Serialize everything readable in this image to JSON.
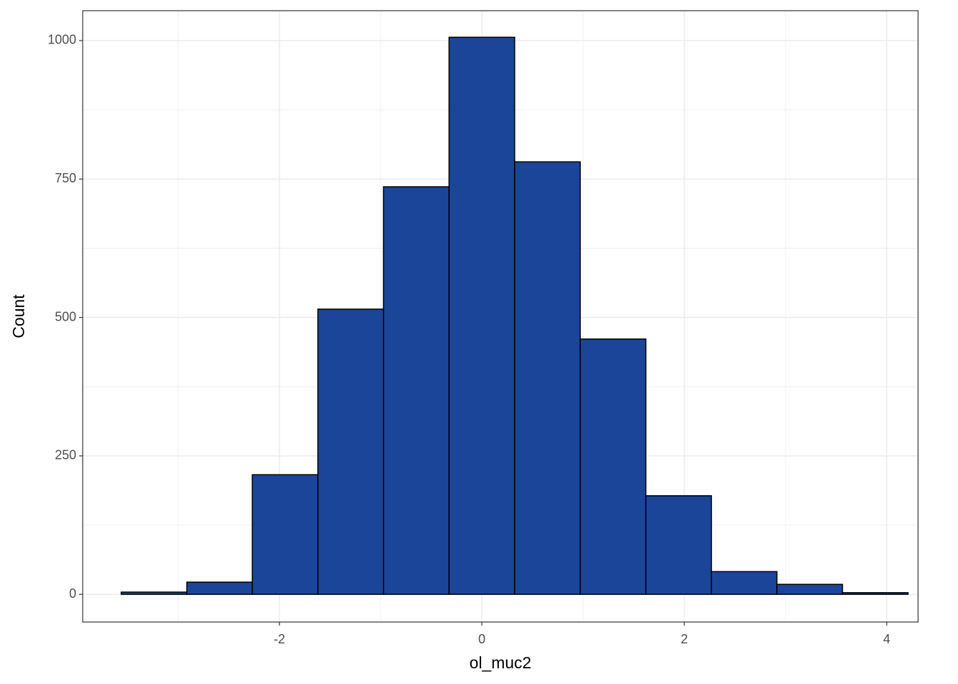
{
  "chart_data": {
    "type": "histogram",
    "x_label": "ol_muc2",
    "y_label": "Count",
    "bins": [
      -3.563,
      -2.915,
      -2.268,
      -1.62,
      -0.972,
      -0.324,
      0.324,
      0.972,
      1.62,
      2.268,
      2.915,
      3.563,
      4.211
    ],
    "counts": [
      4,
      22,
      216,
      515,
      736,
      1006,
      781,
      461,
      178,
      41,
      18,
      3
    ],
    "color": "#1a4599",
    "xlim": [
      -3.944,
      4.31
    ],
    "ylim": [
      -50,
      1054
    ],
    "xticks": [
      -2,
      0,
      2,
      4
    ],
    "yticks": [
      0,
      250,
      500,
      750,
      1000
    ],
    "grid": true
  }
}
